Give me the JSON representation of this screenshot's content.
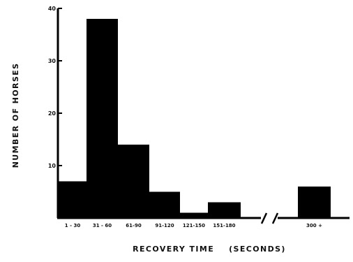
{
  "chart_data": {
    "type": "bar",
    "title": "",
    "xlabel": "RECOVERY TIME    (SECONDS)",
    "ylabel": "NUMBER OF HORSES",
    "ylim": [
      0,
      40
    ],
    "yticks": [
      {
        "value": 10,
        "label": "10"
      },
      {
        "value": 20,
        "label": "20"
      },
      {
        "value": 30,
        "label": "30"
      },
      {
        "value": 40,
        "label": "40"
      }
    ],
    "axis_break": "between 151-180 and 300 +",
    "grid": false,
    "categories": [
      "1 - 30",
      "31 - 60",
      "61-90",
      "91-120",
      "121-150",
      "151-180",
      "300 +"
    ],
    "values": [
      7,
      38,
      14,
      5,
      1,
      3,
      6
    ],
    "bar_color": "#000000"
  }
}
